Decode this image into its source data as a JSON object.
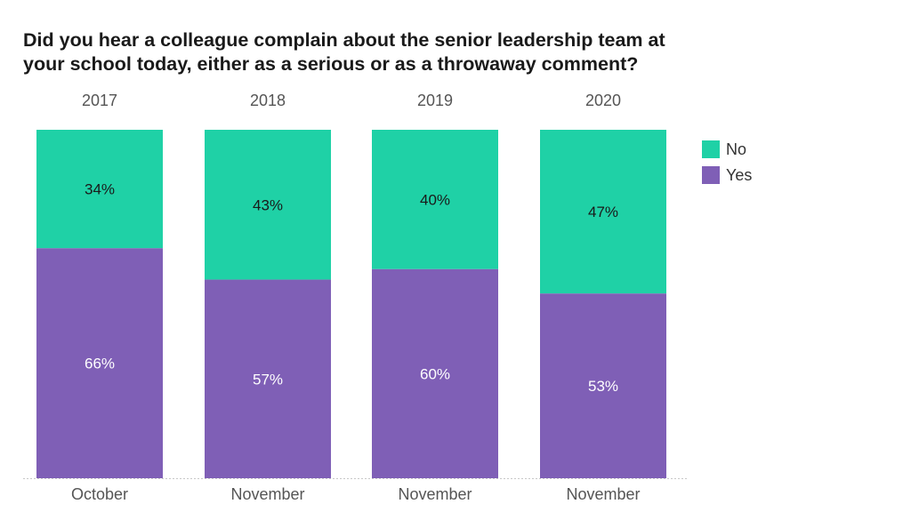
{
  "chart_data": {
    "type": "bar",
    "stacked": "percent",
    "title": "Did you hear a colleague complain about the senior leadership team at your school today, either as a serious or as a throwaway comment?",
    "years": [
      "2017",
      "2018",
      "2019",
      "2020"
    ],
    "categories": [
      "October",
      "November",
      "November",
      "November"
    ],
    "series": [
      {
        "name": "Yes",
        "color": "#7f5fb6",
        "values": [
          66,
          57,
          60,
          53
        ],
        "labels": [
          "66%",
          "57%",
          "60%",
          "53%"
        ]
      },
      {
        "name": "No",
        "color": "#1fd1a6",
        "values": [
          34,
          43,
          40,
          47
        ],
        "labels": [
          "34%",
          "43%",
          "40%",
          "47%"
        ]
      }
    ],
    "legend": {
      "position": "right",
      "items": [
        "No",
        "Yes"
      ]
    },
    "ylim": [
      0,
      100
    ],
    "grid": false,
    "xlabel": "",
    "ylabel": ""
  }
}
